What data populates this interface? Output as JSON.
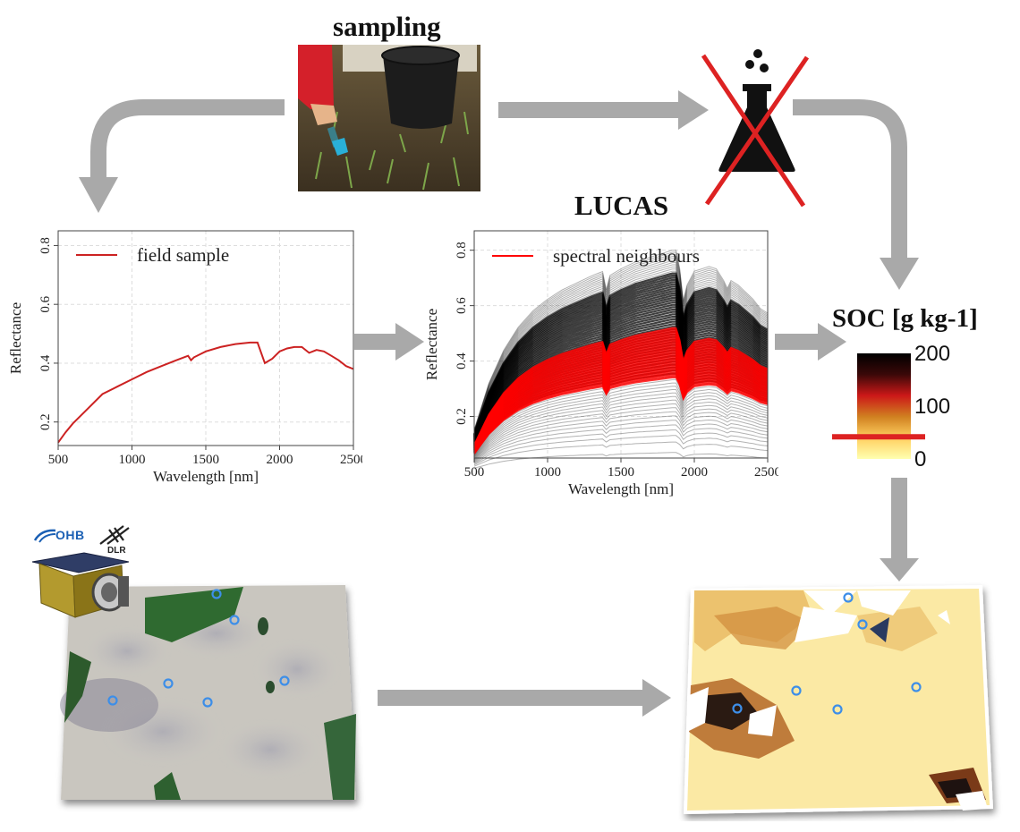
{
  "titles": {
    "sampling": "sampling",
    "lucas": "LUCAS",
    "soc": "SOC [g kg-1]"
  },
  "icons": {
    "lab": "chemistry-flask-crossed-icon",
    "satellite": "satellite-icon"
  },
  "logos": {
    "ohb": "OHB",
    "dlr": "DLR"
  },
  "colors": {
    "arrow": "#a9a9a9",
    "field_line": "#cc2222",
    "neighbour_lines": "#ff0000",
    "library_lines": "#000000",
    "cross": "#dd2222"
  },
  "chart_data": [
    {
      "type": "line",
      "legend": "field sample",
      "xlabel": "Wavelength [nm]",
      "ylabel": "Reflectance",
      "xlim": [
        500,
        2500
      ],
      "ylim": [
        0.12,
        0.85
      ],
      "xticks": [
        "500",
        "1000",
        "1500",
        "2000",
        "2500"
      ],
      "yticks": [
        "0.2",
        "0.4",
        "0.6",
        "0.8"
      ],
      "grid": true,
      "legend_position": "top-left",
      "series": [
        {
          "name": "field sample",
          "x": [
            500,
            550,
            600,
            650,
            700,
            800,
            900,
            1000,
            1100,
            1200,
            1300,
            1380,
            1400,
            1420,
            1500,
            1600,
            1700,
            1800,
            1850,
            1900,
            1950,
            2000,
            2050,
            2100,
            2150,
            2200,
            2250,
            2300,
            2350,
            2400,
            2450,
            2500
          ],
          "values": [
            0.13,
            0.165,
            0.195,
            0.22,
            0.245,
            0.295,
            0.32,
            0.345,
            0.37,
            0.39,
            0.41,
            0.425,
            0.41,
            0.42,
            0.44,
            0.455,
            0.465,
            0.47,
            0.47,
            0.4,
            0.415,
            0.44,
            0.45,
            0.455,
            0.455,
            0.435,
            0.445,
            0.44,
            0.425,
            0.41,
            0.39,
            0.38
          ]
        }
      ]
    },
    {
      "type": "line",
      "title": "LUCAS",
      "legend": "spectral neighbours",
      "xlabel": "Wavelength [nm]",
      "ylabel": "Reflectance",
      "xlim": [
        500,
        2500
      ],
      "ylim": [
        0.05,
        0.87
      ],
      "xticks": [
        "500",
        "1000",
        "1500",
        "2000",
        "2500"
      ],
      "yticks": [
        "0.2",
        "0.4",
        "0.6",
        "0.8"
      ],
      "grid": true,
      "legend_position": "top-left",
      "library_count": 70,
      "neighbour_count": 40,
      "library_range": [
        0.07,
        0.8
      ],
      "neighbour_range": [
        0.34,
        0.52
      ],
      "shape_x": [
        500,
        600,
        700,
        800,
        900,
        1000,
        1100,
        1200,
        1300,
        1380,
        1400,
        1420,
        1500,
        1600,
        1700,
        1800,
        1850,
        1890,
        1920,
        1950,
        2000,
        2100,
        2150,
        2200,
        2220,
        2250,
        2300,
        2350,
        2400,
        2450,
        2500
      ],
      "shape_y": [
        0.18,
        0.38,
        0.52,
        0.62,
        0.69,
        0.74,
        0.78,
        0.81,
        0.84,
        0.86,
        0.78,
        0.84,
        0.87,
        0.9,
        0.92,
        0.94,
        0.95,
        0.95,
        0.72,
        0.8,
        0.86,
        0.88,
        0.87,
        0.82,
        0.78,
        0.82,
        0.8,
        0.77,
        0.74,
        0.7,
        0.68
      ]
    },
    {
      "type": "heatmap",
      "title": "SOC [g kg-1]",
      "ticks": [
        "200",
        "100",
        "0"
      ],
      "range": [
        0,
        200
      ],
      "colors": [
        "#ffffb0",
        "#ffd060",
        "#d08020",
        "#cc1818",
        "#3a0808",
        "#000000"
      ],
      "marker_value": 42
    }
  ]
}
